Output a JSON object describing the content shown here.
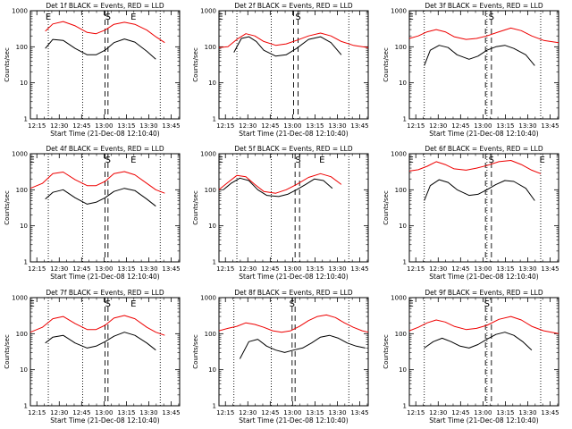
{
  "colors": {
    "background": "#ffffff",
    "events": "#000000",
    "lld": "#ee0000",
    "axes": "#000000"
  },
  "common": {
    "xlabel": "Start Time (21-Dec-08 12:10:40)",
    "ylabel": "Counts/sec",
    "x_tick_labels": [
      "12:15",
      "12:30",
      "12:45",
      "13:00",
      "13:15",
      "13:30",
      "13:45"
    ],
    "y_tick_labels": [
      "1",
      "10",
      "100",
      "1000"
    ],
    "markers": {
      "E": "E",
      "S": "S"
    }
  },
  "chart_data": [
    {
      "type": "line",
      "title": "Det 1f BLACK = Events, RED = LLD",
      "x_unit": "minutes after 12:10:40",
      "xlim": [
        0,
        100
      ],
      "ylim": [
        1,
        1000
      ],
      "y_scale": "log",
      "series": [
        {
          "name": "Events",
          "color": "#000000",
          "x": [
            10,
            15,
            22,
            30,
            38,
            44,
            50,
            56,
            63,
            70,
            78,
            84
          ],
          "values": [
            90,
            160,
            150,
            90,
            60,
            60,
            80,
            130,
            165,
            135,
            75,
            45
          ]
        },
        {
          "name": "LLD",
          "color": "#ee0000",
          "x": [
            10,
            15,
            22,
            30,
            38,
            44,
            50,
            56,
            63,
            70,
            78,
            84,
            90
          ],
          "values": [
            270,
            430,
            500,
            380,
            250,
            230,
            290,
            420,
            480,
            420,
            290,
            190,
            130
          ]
        }
      ],
      "dotted_x": [
        12,
        35,
        87
      ],
      "dashed_x": [
        50,
        52
      ],
      "markers": [
        {
          "label": "E",
          "x": 12
        },
        {
          "label": "S",
          "x": 52
        },
        {
          "label": "E",
          "x": 69
        }
      ]
    },
    {
      "type": "line",
      "title": "Det 2f BLACK = Events, RED = LLD",
      "x_unit": "minutes after 12:10:40",
      "xlim": [
        0,
        100
      ],
      "ylim": [
        1,
        1000
      ],
      "y_scale": "log",
      "series": [
        {
          "name": "Events",
          "color": "#000000",
          "x": [
            10,
            15,
            20,
            25,
            30,
            38,
            45,
            52,
            60,
            68,
            75,
            82
          ],
          "values": [
            70,
            170,
            190,
            140,
            80,
            55,
            60,
            90,
            160,
            190,
            130,
            60
          ]
        },
        {
          "name": "LLD",
          "color": "#ee0000",
          "x": [
            0,
            6,
            12,
            18,
            24,
            30,
            38,
            45,
            52,
            60,
            68,
            75,
            82,
            90,
            100
          ],
          "values": [
            95,
            100,
            160,
            230,
            200,
            140,
            110,
            120,
            150,
            200,
            240,
            200,
            140,
            110,
            95
          ]
        }
      ],
      "dotted_x": [
        12,
        35,
        87
      ],
      "dashed_x": [
        50,
        53
      ],
      "markers": [
        {
          "label": "E",
          "x": 1
        },
        {
          "label": "S",
          "x": 53
        }
      ]
    },
    {
      "type": "line",
      "title": "Det 3f BLACK = Events, RED = LLD",
      "x_unit": "minutes after 12:10:40",
      "xlim": [
        0,
        100
      ],
      "ylim": [
        1,
        1000
      ],
      "y_scale": "log",
      "series": [
        {
          "name": "Events",
          "color": "#000000",
          "x": [
            10,
            14,
            20,
            26,
            32,
            40,
            46,
            52,
            58,
            64,
            70,
            78,
            84
          ],
          "values": [
            30,
            80,
            110,
            95,
            60,
            45,
            55,
            80,
            100,
            110,
            90,
            60,
            30
          ]
        },
        {
          "name": "LLD",
          "color": "#ee0000",
          "x": [
            0,
            6,
            12,
            18,
            24,
            30,
            38,
            45,
            52,
            60,
            68,
            75,
            82,
            90,
            100
          ],
          "values": [
            170,
            200,
            260,
            300,
            260,
            190,
            160,
            170,
            200,
            260,
            330,
            280,
            200,
            150,
            130
          ]
        }
      ],
      "dotted_x": [
        10,
        52,
        88
      ],
      "dashed_x": [
        51,
        55
      ],
      "markers": [
        {
          "label": "E",
          "x": 1
        },
        {
          "label": "S",
          "x": 55
        }
      ]
    },
    {
      "type": "line",
      "title": "Det 4f BLACK = Events, RED = LLD",
      "x_unit": "minutes after 12:10:40",
      "xlim": [
        0,
        100
      ],
      "ylim": [
        1,
        1000
      ],
      "y_scale": "log",
      "series": [
        {
          "name": "Events",
          "color": "#000000",
          "x": [
            10,
            15,
            22,
            30,
            38,
            44,
            50,
            56,
            63,
            70,
            78,
            84
          ],
          "values": [
            55,
            85,
            100,
            60,
            40,
            45,
            60,
            90,
            110,
            95,
            55,
            35
          ]
        },
        {
          "name": "LLD",
          "color": "#ee0000",
          "x": [
            0,
            8,
            15,
            22,
            30,
            38,
            44,
            50,
            56,
            63,
            70,
            78,
            84,
            90
          ],
          "values": [
            110,
            150,
            280,
            310,
            190,
            130,
            130,
            170,
            280,
            320,
            260,
            150,
            100,
            80
          ]
        }
      ],
      "dotted_x": [
        12,
        35,
        87
      ],
      "dashed_x": [
        50,
        52
      ],
      "markers": [
        {
          "label": "E",
          "x": 1
        },
        {
          "label": "S",
          "x": 52
        },
        {
          "label": "E",
          "x": 69
        }
      ]
    },
    {
      "type": "line",
      "title": "Det 5f BLACK = Events, RED = LLD",
      "x_unit": "minutes after 12:10:40",
      "xlim": [
        0,
        100
      ],
      "ylim": [
        1,
        1000
      ],
      "y_scale": "log",
      "series": [
        {
          "name": "Events",
          "color": "#000000",
          "x": [
            3,
            8,
            14,
            20,
            26,
            32,
            40,
            46,
            52,
            58,
            64,
            70,
            76
          ],
          "values": [
            100,
            150,
            210,
            180,
            100,
            70,
            65,
            75,
            100,
            140,
            200,
            180,
            110
          ]
        },
        {
          "name": "LLD",
          "color": "#ee0000",
          "x": [
            0,
            6,
            12,
            18,
            24,
            30,
            38,
            45,
            52,
            60,
            68,
            75,
            82
          ],
          "values": [
            100,
            160,
            250,
            230,
            140,
            90,
            80,
            100,
            140,
            220,
            280,
            230,
            140
          ]
        }
      ],
      "dotted_x": [
        12,
        35,
        87
      ],
      "dashed_x": [
        51,
        54
      ],
      "markers": [
        {
          "label": "E",
          "x": 1
        },
        {
          "label": "S",
          "x": 53
        },
        {
          "label": "E",
          "x": 69
        }
      ]
    },
    {
      "type": "line",
      "title": "Det 6f BLACK = Events, RED = LLD",
      "x_unit": "minutes after 12:10:40",
      "xlim": [
        0,
        100
      ],
      "ylim": [
        1,
        1000
      ],
      "y_scale": "log",
      "series": [
        {
          "name": "Events",
          "color": "#000000",
          "x": [
            10,
            14,
            20,
            26,
            32,
            40,
            46,
            52,
            58,
            64,
            70,
            78,
            84
          ],
          "values": [
            50,
            130,
            190,
            160,
            100,
            70,
            75,
            100,
            140,
            180,
            170,
            110,
            50
          ]
        },
        {
          "name": "LLD",
          "color": "#ee0000",
          "x": [
            0,
            6,
            12,
            18,
            24,
            30,
            38,
            45,
            52,
            60,
            68,
            75,
            82,
            88
          ],
          "values": [
            330,
            360,
            450,
            600,
            500,
            380,
            350,
            400,
            470,
            600,
            650,
            500,
            350,
            280
          ]
        }
      ],
      "dotted_x": [
        10,
        52,
        88
      ],
      "dashed_x": [
        51,
        55
      ],
      "markers": [
        {
          "label": "E",
          "x": 1
        },
        {
          "label": "S",
          "x": 55
        },
        {
          "label": "E",
          "x": 89
        }
      ]
    },
    {
      "type": "line",
      "title": "Det 7f BLACK = Events, RED = LLD",
      "x_unit": "minutes after 12:10:40",
      "xlim": [
        0,
        100
      ],
      "ylim": [
        1,
        1000
      ],
      "y_scale": "log",
      "series": [
        {
          "name": "Events",
          "color": "#000000",
          "x": [
            10,
            15,
            22,
            30,
            38,
            44,
            50,
            56,
            63,
            70,
            78,
            84
          ],
          "values": [
            55,
            80,
            90,
            55,
            40,
            45,
            60,
            85,
            110,
            90,
            55,
            35
          ]
        },
        {
          "name": "LLD",
          "color": "#ee0000",
          "x": [
            0,
            8,
            15,
            22,
            30,
            38,
            44,
            50,
            56,
            63,
            70,
            78,
            84,
            90
          ],
          "values": [
            110,
            150,
            260,
            300,
            190,
            130,
            130,
            170,
            270,
            320,
            260,
            150,
            110,
            90
          ]
        }
      ],
      "dotted_x": [
        12,
        35,
        87
      ],
      "dashed_x": [
        50,
        52
      ],
      "markers": [
        {
          "label": "E",
          "x": 1
        },
        {
          "label": "S",
          "x": 52
        },
        {
          "label": "E",
          "x": 69
        }
      ]
    },
    {
      "type": "line",
      "title": "Det 8f BLACK = Events, RED = LLD",
      "x_unit": "minutes after 12:10:40",
      "xlim": [
        0,
        100
      ],
      "ylim": [
        1,
        1000
      ],
      "y_scale": "log",
      "series": [
        {
          "name": "Events",
          "color": "#000000",
          "x": [
            14,
            20,
            26,
            32,
            38,
            44,
            50,
            56,
            62,
            68,
            74,
            80,
            86,
            92,
            98
          ],
          "values": [
            20,
            60,
            70,
            45,
            35,
            30,
            35,
            40,
            55,
            80,
            90,
            75,
            55,
            45,
            40
          ]
        },
        {
          "name": "LLD",
          "color": "#ee0000",
          "x": [
            0,
            6,
            12,
            18,
            24,
            30,
            36,
            42,
            48,
            54,
            60,
            66,
            72,
            78,
            84,
            90,
            96,
            100
          ],
          "values": [
            120,
            140,
            160,
            200,
            180,
            150,
            120,
            110,
            120,
            160,
            230,
            300,
            330,
            280,
            200,
            150,
            120,
            110
          ]
        }
      ],
      "dotted_x": [
        10,
        35,
        87
      ],
      "dashed_x": [
        49,
        51
      ],
      "markers": [
        {
          "label": "S",
          "x": 49
        }
      ]
    },
    {
      "type": "line",
      "title": "Det 9f BLACK = Events, RED = LLD",
      "x_unit": "minutes after 12:10:40",
      "xlim": [
        0,
        100
      ],
      "ylim": [
        1,
        1000
      ],
      "y_scale": "log",
      "series": [
        {
          "name": "Events",
          "color": "#000000",
          "x": [
            10,
            16,
            22,
            28,
            34,
            40,
            46,
            52,
            58,
            64,
            70,
            76,
            82
          ],
          "values": [
            40,
            60,
            75,
            60,
            45,
            40,
            50,
            70,
            95,
            110,
            90,
            60,
            35
          ]
        },
        {
          "name": "LLD",
          "color": "#ee0000",
          "x": [
            0,
            6,
            12,
            18,
            24,
            30,
            38,
            45,
            52,
            60,
            68,
            75,
            82,
            90,
            100
          ],
          "values": [
            120,
            150,
            200,
            240,
            210,
            160,
            130,
            140,
            170,
            250,
            300,
            240,
            160,
            120,
            100
          ]
        }
      ],
      "dotted_x": [
        10,
        52,
        88
      ],
      "dashed_x": [
        51,
        55
      ],
      "markers": [
        {
          "label": "E",
          "x": 1
        },
        {
          "label": "S",
          "x": 52
        }
      ]
    }
  ]
}
